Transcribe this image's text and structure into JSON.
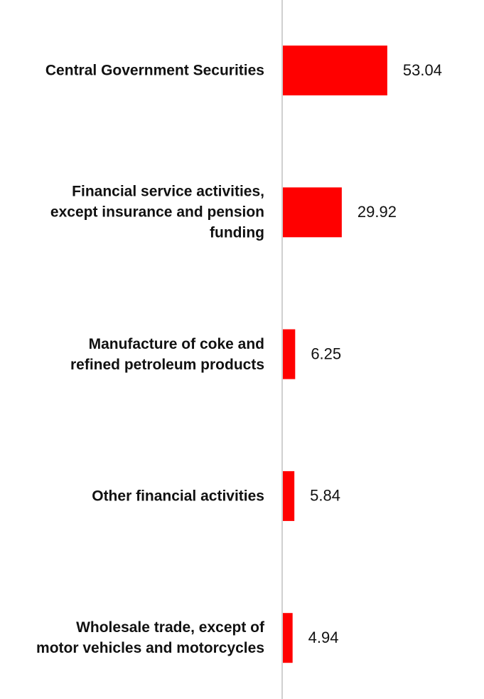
{
  "chart_data": {
    "type": "hbar",
    "categories": [
      "Central Government Securities",
      "Financial service activities, except insurance and pension funding",
      "Manufacture of coke and refined petroleum products",
      "Other financial activities",
      "Wholesale trade, except of motor vehicles and motorcycles"
    ],
    "values": [
      53.04,
      29.92,
      6.25,
      5.84,
      4.94
    ],
    "color": "#ff0000",
    "xlim": [
      0,
      100
    ]
  }
}
